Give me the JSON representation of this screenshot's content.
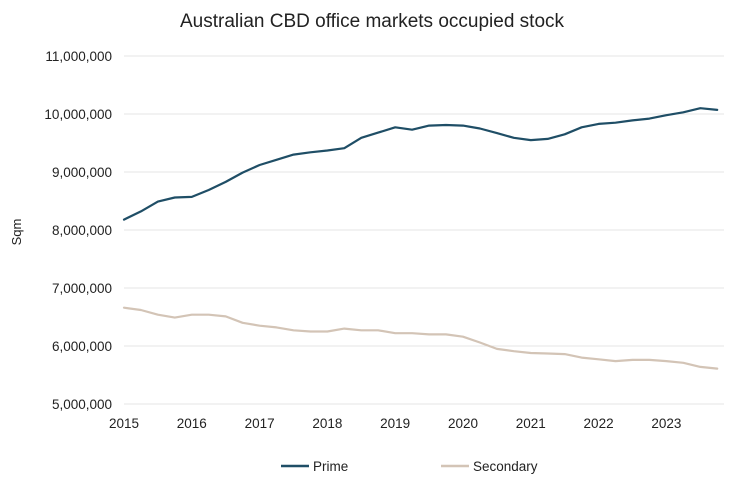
{
  "chart_data": {
    "type": "line",
    "title": "Australian CBD office markets occupied stock",
    "xlabel": "",
    "ylabel": "Sqm",
    "xlim": [
      2015,
      2023.85
    ],
    "ylim": [
      5000000,
      11000000
    ],
    "y_ticks": [
      5000000,
      6000000,
      7000000,
      8000000,
      9000000,
      10000000,
      11000000
    ],
    "y_tick_labels": [
      "5,000,000",
      "6,000,000",
      "7,000,000",
      "8,000,000",
      "9,000,000",
      "10,000,000",
      "11,000,000"
    ],
    "x_ticks": [
      2015,
      2016,
      2017,
      2018,
      2019,
      2020,
      2021,
      2022,
      2023
    ],
    "x_tick_labels": [
      "2015",
      "2016",
      "2017",
      "2018",
      "2019",
      "2020",
      "2021",
      "2022",
      "2023"
    ],
    "grid": "horizontal",
    "legend": "bottom",
    "x": [
      2015,
      2015.25,
      2015.5,
      2015.75,
      2016,
      2016.25,
      2016.5,
      2016.75,
      2017,
      2017.25,
      2017.5,
      2017.75,
      2018,
      2018.25,
      2018.5,
      2018.75,
      2019,
      2019.25,
      2019.5,
      2019.75,
      2020,
      2020.25,
      2020.5,
      2020.75,
      2021,
      2021.25,
      2021.5,
      2021.75,
      2022,
      2022.25,
      2022.5,
      2022.75,
      2023,
      2023.25,
      2023.5,
      2023.75
    ],
    "series": [
      {
        "name": "Prime",
        "color": "#1f4e66",
        "values": [
          8180000,
          8320000,
          8490000,
          8560000,
          8570000,
          8690000,
          8830000,
          8990000,
          9120000,
          9210000,
          9300000,
          9340000,
          9370000,
          9410000,
          9590000,
          9680000,
          9770000,
          9730000,
          9800000,
          9810000,
          9800000,
          9750000,
          9670000,
          9590000,
          9550000,
          9570000,
          9650000,
          9770000,
          9830000,
          9850000,
          9890000,
          9920000,
          9980000,
          10030000,
          10100000,
          10070000
        ]
      },
      {
        "name": "Secondary",
        "color": "#d3c4b6",
        "values": [
          6660000,
          6620000,
          6540000,
          6490000,
          6540000,
          6540000,
          6510000,
          6400000,
          6350000,
          6320000,
          6270000,
          6250000,
          6250000,
          6300000,
          6270000,
          6270000,
          6220000,
          6220000,
          6200000,
          6200000,
          6160000,
          6060000,
          5950000,
          5910000,
          5880000,
          5870000,
          5860000,
          5800000,
          5770000,
          5740000,
          5760000,
          5760000,
          5740000,
          5710000,
          5640000,
          5610000
        ]
      }
    ]
  }
}
